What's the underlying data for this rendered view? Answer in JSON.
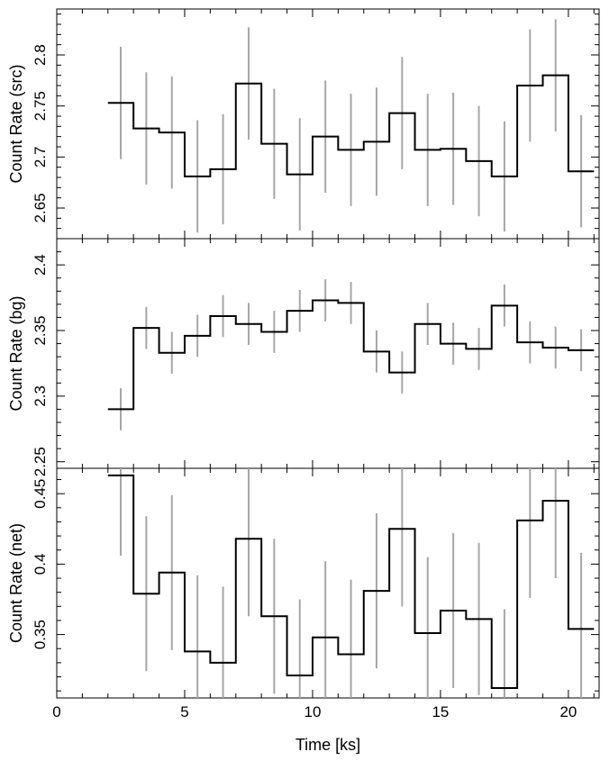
{
  "chart_data": [
    {
      "type": "line",
      "style": "step",
      "ylabel": "Count Rate (src)",
      "xlabel": "",
      "xlim": [
        0,
        21.2
      ],
      "ylim": [
        2.62,
        2.845
      ],
      "yticks": [
        2.65,
        2.7,
        2.75,
        2.8
      ],
      "ytick_labels": [
        "2.65",
        "2.7",
        "2.75",
        "2.8"
      ],
      "bin_edges": [
        2,
        3,
        4,
        5,
        6,
        7,
        8,
        9,
        10,
        11,
        12,
        13,
        14,
        15,
        16,
        17,
        18,
        19,
        20,
        21
      ],
      "series": [
        {
          "values": [
            2.753,
            2.728,
            2.724,
            2.681,
            2.688,
            2.772,
            2.713,
            2.683,
            2.72,
            2.707,
            2.715,
            2.743,
            2.707,
            2.708,
            2.696,
            2.681,
            2.77,
            2.78,
            2.686
          ],
          "errors": [
            0.055,
            0.055,
            0.055,
            0.055,
            0.054,
            0.055,
            0.054,
            0.055,
            0.055,
            0.055,
            0.053,
            0.055,
            0.055,
            0.055,
            0.054,
            0.054,
            0.055,
            0.055,
            0.055
          ]
        }
      ]
    },
    {
      "type": "line",
      "style": "step",
      "ylabel": "Count Rate (bg)",
      "xlabel": "",
      "xlim": [
        0,
        21.2
      ],
      "ylim": [
        2.245,
        2.42
      ],
      "yticks": [
        2.25,
        2.3,
        2.35,
        2.4
      ],
      "ytick_labels": [
        "2.25",
        "2.3",
        "2.35",
        "2.4"
      ],
      "bin_edges": [
        2,
        3,
        4,
        5,
        6,
        7,
        8,
        9,
        10,
        11,
        12,
        13,
        14,
        15,
        16,
        17,
        18,
        19,
        20,
        21
      ],
      "series": [
        {
          "values": [
            2.29,
            2.352,
            2.333,
            2.346,
            2.361,
            2.355,
            2.349,
            2.365,
            2.373,
            2.371,
            2.334,
            2.318,
            2.355,
            2.34,
            2.336,
            2.369,
            2.341,
            2.337,
            2.335
          ],
          "errors": [
            0.016,
            0.016,
            0.016,
            0.016,
            0.016,
            0.016,
            0.016,
            0.016,
            0.016,
            0.016,
            0.016,
            0.016,
            0.016,
            0.016,
            0.016,
            0.016,
            0.016,
            0.016,
            0.016
          ]
        }
      ]
    },
    {
      "type": "line",
      "style": "step",
      "ylabel": "Count Rate (net)",
      "xlabel": "Time [ks]",
      "xlim": [
        0,
        21.2
      ],
      "ylim": [
        0.305,
        0.468
      ],
      "yticks": [
        0.35,
        0.4,
        0.45
      ],
      "ytick_labels": [
        "0.35",
        "0.4",
        "0.45"
      ],
      "xticks": [
        0,
        5,
        10,
        15,
        20
      ],
      "xtick_labels": [
        "0",
        "5",
        "10",
        "15",
        "20"
      ],
      "bin_edges": [
        2,
        3,
        4,
        5,
        6,
        7,
        8,
        9,
        10,
        11,
        12,
        13,
        14,
        15,
        16,
        17,
        18,
        19,
        20,
        21
      ],
      "series": [
        {
          "values": [
            0.463,
            0.379,
            0.394,
            0.338,
            0.33,
            0.418,
            0.363,
            0.321,
            0.348,
            0.336,
            0.381,
            0.425,
            0.351,
            0.367,
            0.361,
            0.312,
            0.431,
            0.445,
            0.354
          ],
          "errors": [
            0.057,
            0.055,
            0.055,
            0.054,
            0.054,
            0.055,
            0.055,
            0.054,
            0.054,
            0.053,
            0.055,
            0.055,
            0.054,
            0.055,
            0.054,
            0.056,
            0.055,
            0.055,
            0.054
          ]
        }
      ]
    }
  ]
}
